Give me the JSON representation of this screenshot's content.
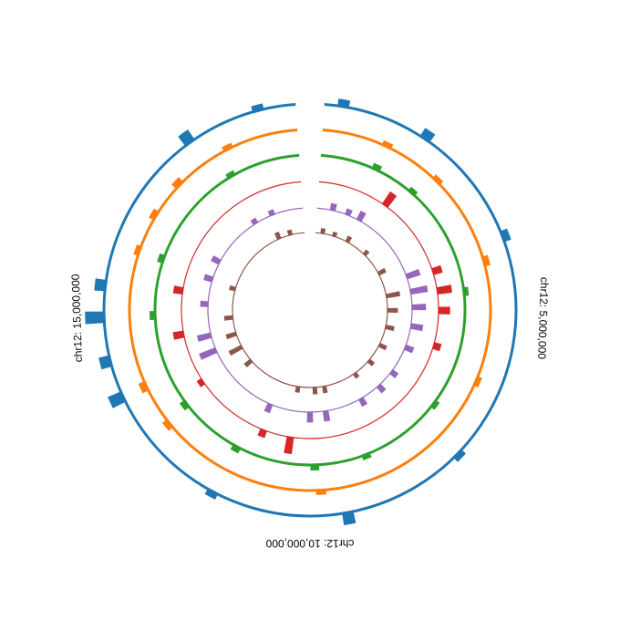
{
  "chart_data": {
    "type": "circular-bar",
    "genome_start": 0,
    "genome_end": 20000000,
    "gap_deg": 8,
    "tick_labels": [
      {
        "position": 5000000,
        "label": "chr12: 5,000,000"
      },
      {
        "position": 10000000,
        "label": "chr12: 10,000,000"
      },
      {
        "position": 15000000,
        "label": "chr12: 15,000,000"
      }
    ],
    "tracks": [
      {
        "color": "#1f77b4",
        "baseline": 3,
        "peaks": [
          {
            "pos": 300000,
            "v": 6
          },
          {
            "pos": 1700000,
            "v": 8
          },
          {
            "pos": 3700000,
            "v": 6
          },
          {
            "pos": 7400000,
            "v": 5
          },
          {
            "pos": 9400000,
            "v": 10
          },
          {
            "pos": 11600000,
            "v": 5
          },
          {
            "pos": 13700000,
            "v": 12
          },
          {
            "pos": 14300000,
            "v": 9
          },
          {
            "pos": 15000000,
            "v": 16
          },
          {
            "pos": 15500000,
            "v": 9
          },
          {
            "pos": 18200000,
            "v": 10
          },
          {
            "pos": 19400000,
            "v": 5
          }
        ]
      },
      {
        "color": "#ff7f0e",
        "baseline": 3,
        "peaks": [
          {
            "pos": 1200000,
            "v": 5
          },
          {
            "pos": 2300000,
            "v": 5
          },
          {
            "pos": 4000000,
            "v": 6
          },
          {
            "pos": 6200000,
            "v": 5
          },
          {
            "pos": 9800000,
            "v": 5
          },
          {
            "pos": 12900000,
            "v": 6
          },
          {
            "pos": 13700000,
            "v": 7
          },
          {
            "pos": 16200000,
            "v": 5
          },
          {
            "pos": 16900000,
            "v": 6
          },
          {
            "pos": 17600000,
            "v": 7
          },
          {
            "pos": 18700000,
            "v": 5
          }
        ]
      },
      {
        "color": "#2ca02c",
        "baseline": 3,
        "peaks": [
          {
            "pos": 1200000,
            "v": 6
          },
          {
            "pos": 2100000,
            "v": 5
          },
          {
            "pos": 4500000,
            "v": 5
          },
          {
            "pos": 7000000,
            "v": 5
          },
          {
            "pos": 8800000,
            "v": 5
          },
          {
            "pos": 9900000,
            "v": 6
          },
          {
            "pos": 11600000,
            "v": 6
          },
          {
            "pos": 13000000,
            "v": 6
          },
          {
            "pos": 15000000,
            "v": 6
          },
          {
            "pos": 16200000,
            "v": 6
          },
          {
            "pos": 18500000,
            "v": 5
          }
        ]
      },
      {
        "color": "#d62728",
        "baseline": 1,
        "peaks": [
          {
            "pos": 1800000,
            "v": 14
          },
          {
            "pos": 3900000,
            "v": 9
          },
          {
            "pos": 4400000,
            "v": 14
          },
          {
            "pos": 4900000,
            "v": 11
          },
          {
            "pos": 5800000,
            "v": 7
          },
          {
            "pos": 10500000,
            "v": 16
          },
          {
            "pos": 11200000,
            "v": 7
          },
          {
            "pos": 14500000,
            "v": 10
          },
          {
            "pos": 15600000,
            "v": 9
          },
          {
            "pos": 13200000,
            "v": 5
          }
        ]
      },
      {
        "color": "#9467bd",
        "baseline": 1,
        "peaks": [
          {
            "pos": 500000,
            "v": 8
          },
          {
            "pos": 1000000,
            "v": 7
          },
          {
            "pos": 1400000,
            "v": 11
          },
          {
            "pos": 3800000,
            "v": 16
          },
          {
            "pos": 4300000,
            "v": 20
          },
          {
            "pos": 4800000,
            "v": 16
          },
          {
            "pos": 5400000,
            "v": 14
          },
          {
            "pos": 6100000,
            "v": 10
          },
          {
            "pos": 7000000,
            "v": 8
          },
          {
            "pos": 7600000,
            "v": 9
          },
          {
            "pos": 8300000,
            "v": 9
          },
          {
            "pos": 9500000,
            "v": 12
          },
          {
            "pos": 10000000,
            "v": 12
          },
          {
            "pos": 11300000,
            "v": 10
          },
          {
            "pos": 13800000,
            "v": 20
          },
          {
            "pos": 14300000,
            "v": 16
          },
          {
            "pos": 15300000,
            "v": 9
          },
          {
            "pos": 16100000,
            "v": 10
          },
          {
            "pos": 16700000,
            "v": 10
          },
          {
            "pos": 18400000,
            "v": 6
          },
          {
            "pos": 19000000,
            "v": 6
          }
        ]
      },
      {
        "color": "#8c564b",
        "baseline": 1,
        "peaks": [
          {
            "pos": 300000,
            "v": 6
          },
          {
            "pos": 800000,
            "v": 5
          },
          {
            "pos": 1400000,
            "v": 7
          },
          {
            "pos": 2300000,
            "v": 6
          },
          {
            "pos": 3300000,
            "v": 9
          },
          {
            "pos": 4300000,
            "v": 16
          },
          {
            "pos": 4900000,
            "v": 12
          },
          {
            "pos": 5600000,
            "v": 10
          },
          {
            "pos": 6400000,
            "v": 9
          },
          {
            "pos": 7200000,
            "v": 7
          },
          {
            "pos": 8000000,
            "v": 6
          },
          {
            "pos": 9400000,
            "v": 8
          },
          {
            "pos": 9800000,
            "v": 8
          },
          {
            "pos": 10500000,
            "v": 7
          },
          {
            "pos": 12800000,
            "v": 9
          },
          {
            "pos": 13500000,
            "v": 16
          },
          {
            "pos": 14100000,
            "v": 12
          },
          {
            "pos": 14800000,
            "v": 10
          },
          {
            "pos": 16000000,
            "v": 7
          },
          {
            "pos": 18900000,
            "v": 8
          },
          {
            "pos": 19400000,
            "v": 6
          }
        ]
      }
    ]
  }
}
